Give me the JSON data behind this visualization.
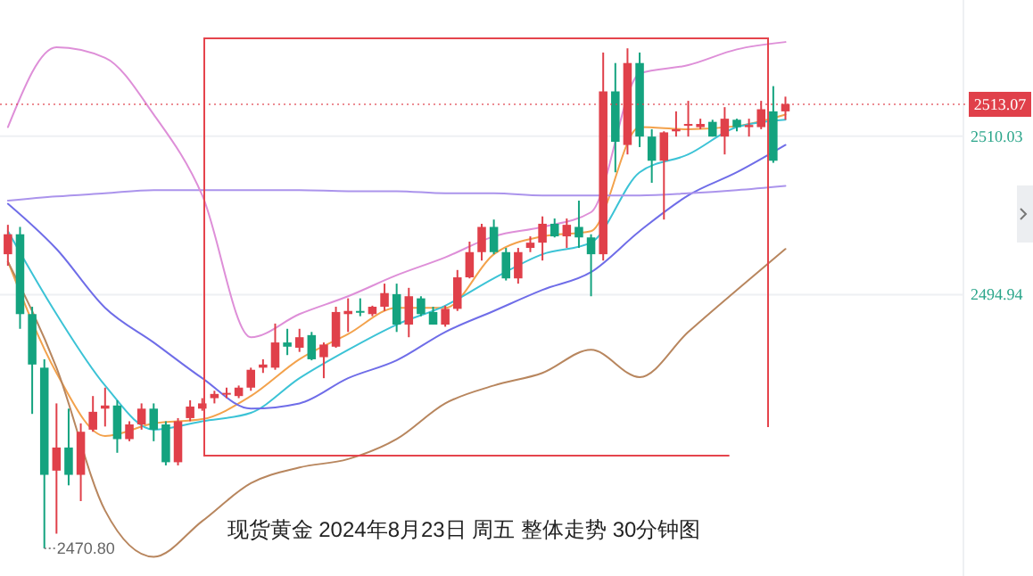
{
  "chart_data": {
    "type": "candlestick",
    "title": "现货黄金  2024年8月23日 周五 整体走势 30分钟图",
    "categories": [
      null,
      null,
      null,
      null,
      null,
      null,
      null,
      null,
      null,
      null,
      null,
      null,
      null,
      null,
      null,
      null,
      null,
      null,
      null,
      null,
      null,
      null,
      null,
      null,
      null,
      null,
      null,
      null,
      null,
      null,
      null,
      null,
      null,
      null,
      null,
      null,
      null,
      null,
      null,
      null,
      null,
      null,
      null,
      null,
      null,
      null,
      null,
      null,
      null,
      null,
      null,
      null,
      null,
      null,
      null,
      null,
      null,
      null,
      null,
      null,
      null,
      null,
      null,
      null,
      null,
      null,
      null,
      null,
      null,
      null,
      null,
      null,
      null,
      null,
      null,
      null,
      null,
      null,
      null
    ],
    "ohlc": [
      [
        2498.8,
        2501.6,
        2497.7,
        2500.7
      ],
      [
        2500.7,
        2501.4,
        2491.7,
        2493.1
      ],
      [
        2493.1,
        2493.8,
        2483.6,
        2488.3
      ],
      [
        2488.0,
        2488.8,
        2470.8,
        2477.8
      ],
      [
        2478.2,
        2484.6,
        2472.2,
        2480.4
      ],
      [
        2480.4,
        2484.1,
        2476.8,
        2477.8
      ],
      [
        2477.8,
        2482.7,
        2475.3,
        2481.9
      ],
      [
        2482.1,
        2485.3,
        2481.9,
        2483.8
      ],
      [
        2484.1,
        2486.1,
        2482.4,
        2484.4
      ],
      [
        2484.4,
        2484.9,
        2479.9,
        2481.2
      ],
      [
        2481.2,
        2482.9,
        2481.0,
        2482.6
      ],
      [
        2482.6,
        2484.6,
        2482.1,
        2484.1
      ],
      [
        2484.1,
        2484.6,
        2481.0,
        2482.1
      ],
      [
        2482.6,
        2482.9,
        2478.7,
        2479.0
      ],
      [
        2479.0,
        2483.2,
        2478.7,
        2482.9
      ],
      [
        2483.2,
        2484.9,
        2482.9,
        2484.3
      ],
      [
        2484.1,
        2485.1,
        2483.9,
        2484.6
      ],
      [
        2485.1,
        2485.8,
        2484.6,
        2485.5
      ],
      [
        2485.5,
        2486.1,
        2485.1,
        2485.6
      ],
      [
        2485.3,
        2486.3,
        2485.1,
        2486.1
      ],
      [
        2486.1,
        2488.0,
        2485.8,
        2487.8
      ],
      [
        2488.0,
        2488.8,
        2487.5,
        2488.3
      ],
      [
        2488.0,
        2492.2,
        2487.8,
        2490.4
      ],
      [
        2490.4,
        2491.7,
        2489.2,
        2490.0
      ],
      [
        2489.9,
        2491.7,
        2489.5,
        2490.9
      ],
      [
        2491.1,
        2491.4,
        2488.7,
        2488.8
      ],
      [
        2489.0,
        2490.4,
        2487.0,
        2490.2
      ],
      [
        2490.0,
        2493.8,
        2489.9,
        2493.3
      ],
      [
        2493.1,
        2494.6,
        2491.4,
        2493.4
      ],
      [
        2493.4,
        2494.6,
        2492.9,
        2493.3
      ],
      [
        2493.1,
        2493.9,
        2492.9,
        2493.8
      ],
      [
        2493.8,
        2496.0,
        2493.4,
        2495.1
      ],
      [
        2495.0,
        2496.0,
        2491.4,
        2492.1
      ],
      [
        2492.1,
        2495.6,
        2490.9,
        2494.8
      ],
      [
        2494.6,
        2494.8,
        2492.9,
        2493.1
      ],
      [
        2493.3,
        2493.8,
        2492.1,
        2492.1
      ],
      [
        2492.1,
        2493.9,
        2491.9,
        2493.6
      ],
      [
        2493.6,
        2497.3,
        2493.4,
        2496.6
      ],
      [
        2496.6,
        2500.0,
        2496.5,
        2499.0
      ],
      [
        2499.0,
        2501.7,
        2498.2,
        2501.4
      ],
      [
        2501.4,
        2502.1,
        2498.8,
        2499.0
      ],
      [
        2499.0,
        2499.4,
        2496.3,
        2496.5
      ],
      [
        2496.5,
        2499.4,
        2496.0,
        2499.0
      ],
      [
        2499.4,
        2500.5,
        2499.0,
        2499.9
      ],
      [
        2499.9,
        2502.4,
        2498.2,
        2501.7
      ],
      [
        2501.7,
        2502.2,
        2500.4,
        2500.5
      ],
      [
        2500.5,
        2502.2,
        2499.4,
        2501.6
      ],
      [
        2501.4,
        2503.9,
        2499.4,
        2500.4
      ],
      [
        2500.4,
        2500.7,
        2494.8,
        2498.8
      ],
      [
        2498.8,
        2518.0,
        2498.2,
        2514.3
      ],
      [
        2514.3,
        2517.0,
        2506.6,
        2509.5
      ],
      [
        2509.2,
        2518.4,
        2508.3,
        2517.0
      ],
      [
        2517.0,
        2518.0,
        2509.0,
        2510.0
      ],
      [
        2510.0,
        2510.7,
        2505.6,
        2507.7
      ],
      [
        2507.7,
        2510.5,
        2502.1,
        2510.4
      ],
      [
        2510.5,
        2512.4,
        2510.0,
        2510.7
      ],
      [
        2511.1,
        2513.4,
        2510.0,
        2511.2
      ],
      [
        2510.9,
        2511.7,
        2510.7,
        2511.2
      ],
      [
        2511.4,
        2511.6,
        2510.0,
        2510.0
      ],
      [
        2510.0,
        2512.8,
        2508.3,
        2511.7
      ],
      [
        2511.6,
        2511.7,
        2510.5,
        2510.9
      ],
      [
        2510.9,
        2511.7,
        2510.0,
        2511.1
      ],
      [
        2510.9,
        2513.4,
        2510.7,
        2512.6
      ],
      [
        2512.4,
        2514.8,
        2507.5,
        2507.7
      ],
      [
        2512.4,
        2513.8,
        2511.6,
        2513.1
      ],
      null,
      null,
      null,
      null,
      null,
      null,
      null,
      null,
      null,
      null,
      null,
      null,
      null,
      null
    ],
    "series": [
      {
        "type": "line",
        "color": "#f3a24c",
        "values": [
          2498.1,
          null,
          null,
          null,
          2487.5,
          null,
          null,
          null,
          2481.5,
          null,
          null,
          null,
          2482.7,
          null,
          null,
          null,
          2483.1,
          null,
          null,
          null,
          2485.3,
          null,
          null,
          null,
          2488.8,
          null,
          null,
          null,
          2491.2,
          null,
          null,
          null,
          2493.7,
          null,
          null,
          null,
          2493.7,
          null,
          null,
          null,
          2498.8,
          null,
          null,
          null,
          2500.5,
          null,
          null,
          null,
          2501.0,
          null,
          null,
          null,
          2510.9,
          null,
          null,
          null,
          2510.7,
          null,
          null,
          null,
          2511.0,
          null,
          null,
          null,
          2512.1,
          null,
          null,
          null,
          null,
          null,
          null,
          null,
          null,
          null,
          null,
          null,
          null,
          null,
          null
        ]
      },
      {
        "type": "line",
        "color": "#3cc3d6",
        "values": [
          2501.0,
          null,
          null,
          null,
          2493.1,
          null,
          null,
          null,
          2486.3,
          null,
          null,
          null,
          2482.1,
          null,
          null,
          null,
          2482.9,
          null,
          null,
          null,
          2483.7,
          null,
          null,
          null,
          2487.0,
          null,
          null,
          null,
          2489.7,
          null,
          null,
          null,
          2492.1,
          null,
          null,
          null,
          2493.9,
          null,
          null,
          null,
          2496.5,
          null,
          null,
          null,
          2498.8,
          null,
          null,
          null,
          2499.9,
          null,
          null,
          null,
          2506.6,
          null,
          null,
          null,
          2508.3,
          null,
          null,
          null,
          2510.9,
          null,
          null,
          null,
          2511.6,
          null,
          null,
          null,
          null,
          null,
          null,
          null,
          null,
          null,
          null,
          null,
          null,
          null,
          null
        ]
      },
      {
        "type": "line",
        "color": "#6f6de8",
        "values": [
          2503.6,
          null,
          null,
          null,
          2499.3,
          null,
          null,
          null,
          2493.7,
          null,
          null,
          null,
          2490.4,
          null,
          null,
          null,
          2487.0,
          null,
          null,
          null,
          2484.1,
          null,
          null,
          null,
          2484.6,
          null,
          null,
          null,
          2487.0,
          null,
          null,
          null,
          2488.7,
          null,
          null,
          null,
          2491.4,
          null,
          null,
          null,
          2493.4,
          null,
          null,
          null,
          2495.4,
          null,
          null,
          null,
          2497.1,
          null,
          null,
          null,
          2501.0,
          null,
          null,
          null,
          2504.4,
          null,
          null,
          null,
          2506.6,
          null,
          null,
          null,
          2509.2,
          null,
          null,
          null,
          null,
          null,
          null,
          null,
          null,
          null,
          null,
          null,
          null,
          null,
          null
        ]
      },
      {
        "type": "line",
        "color": "#ab94ec",
        "values": [
          2503.9,
          null,
          null,
          null,
          2504.3,
          null,
          null,
          null,
          2504.6,
          null,
          null,
          null,
          2504.9,
          null,
          null,
          null,
          2504.9,
          null,
          null,
          null,
          2504.9,
          null,
          null,
          null,
          2504.9,
          null,
          null,
          null,
          2504.8,
          null,
          null,
          null,
          2504.8,
          null,
          null,
          null,
          2504.6,
          null,
          null,
          null,
          2504.6,
          null,
          null,
          null,
          2504.4,
          null,
          null,
          null,
          2504.4,
          null,
          null,
          null,
          2504.4,
          null,
          null,
          null,
          2504.6,
          null,
          null,
          null,
          2504.9,
          null,
          null,
          null,
          2505.3,
          null,
          null,
          null,
          null,
          null,
          null,
          null,
          null,
          null,
          null,
          null,
          null,
          null,
          null
        ]
      },
      {
        "type": "line",
        "color": "#de8fd8",
        "values": [
          2510.9,
          null,
          null,
          null,
          2518.5,
          null,
          null,
          null,
          2517.5,
          null,
          null,
          null,
          2512.1,
          null,
          null,
          null,
          2504.4,
          null,
          null,
          null,
          2490.9,
          null,
          null,
          null,
          2493.1,
          null,
          null,
          null,
          2494.8,
          null,
          null,
          null,
          2496.8,
          null,
          null,
          null,
          2498.5,
          null,
          null,
          null,
          2500.5,
          null,
          null,
          null,
          2501.4,
          null,
          null,
          null,
          2502.8,
          null,
          null,
          null,
          2516.0,
          null,
          null,
          null,
          2516.8,
          null,
          null,
          null,
          2518.3,
          null,
          null,
          null,
          2519.0,
          null,
          null,
          null,
          null,
          null,
          null,
          null,
          null,
          null,
          null,
          null,
          null,
          null,
          null
        ]
      },
      {
        "type": "line",
        "color": "#b8865e",
        "values": [
          2498.1,
          null,
          null,
          null,
          2488.0,
          null,
          null,
          null,
          2474.4,
          null,
          null,
          null,
          2470.0,
          null,
          null,
          null,
          2473.4,
          null,
          null,
          null,
          2477.0,
          null,
          null,
          null,
          2478.5,
          null,
          null,
          null,
          2479.3,
          null,
          null,
          null,
          2481.2,
          null,
          null,
          null,
          2484.6,
          null,
          null,
          null,
          2486.3,
          null,
          null,
          null,
          2487.5,
          null,
          null,
          null,
          2489.7,
          null,
          null,
          null,
          2487.1,
          null,
          null,
          null,
          2491.4,
          null,
          null,
          null,
          2495.4,
          null,
          null,
          null,
          2499.3,
          null,
          null,
          null,
          null,
          null,
          null,
          null,
          null,
          null,
          null,
          null,
          null,
          null,
          null
        ]
      }
    ],
    "ylim": [
      2468,
      2523
    ],
    "yticks": [
      2494.94,
      2510.03
    ],
    "grid": "y",
    "tick_labels": "y",
    "ref_lines": [
      {
        "axis": "y",
        "value": 2513.07,
        "label": "2513.07",
        "color": "#e0404a",
        "line_style": "dotted"
      }
    ],
    "annotations": [
      "2470.80"
    ]
  }
}
